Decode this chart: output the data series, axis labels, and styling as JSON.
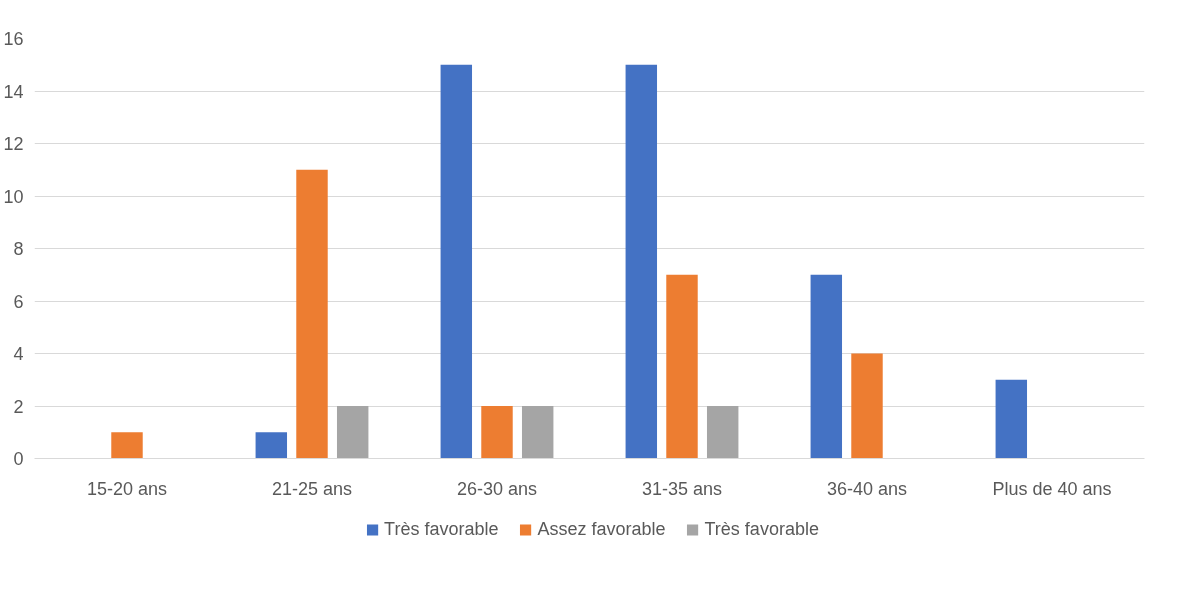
{
  "chart_data": {
    "type": "bar",
    "categories": [
      "15-20 ans",
      "21-25 ans",
      "26-30 ans",
      "31-35 ans",
      "36-40 ans",
      "Plus de 40 ans"
    ],
    "series": [
      {
        "name": "Très favorable",
        "color": "#4472c4",
        "values": [
          null,
          1,
          15,
          15,
          7,
          3
        ]
      },
      {
        "name": "Assez favorable",
        "color": "#ed7d31",
        "values": [
          1,
          11,
          2,
          7,
          4,
          null
        ]
      },
      {
        "name": "Très favorable",
        "color": "#a5a5a5",
        "values": [
          null,
          2,
          2,
          2,
          null,
          null
        ]
      }
    ],
    "ylim": [
      0,
      16
    ],
    "yticks": [
      0,
      2,
      4,
      6,
      8,
      10,
      12,
      14,
      16
    ],
    "grid": "y",
    "legend": "bottom"
  }
}
